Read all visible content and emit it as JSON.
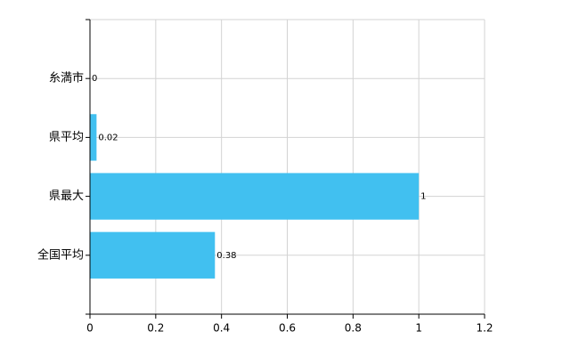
{
  "chart_data": {
    "type": "bar",
    "orientation": "horizontal",
    "categories": [
      "糸満市",
      "県平均",
      "県最大",
      "全国平均"
    ],
    "values": [
      0,
      0.02,
      1,
      0.38
    ],
    "color": "#41c0f0",
    "xlim": [
      0,
      1.2
    ],
    "xticks": [
      0,
      0.2,
      0.4,
      0.6,
      0.8,
      1,
      1.2
    ],
    "grid": true
  }
}
